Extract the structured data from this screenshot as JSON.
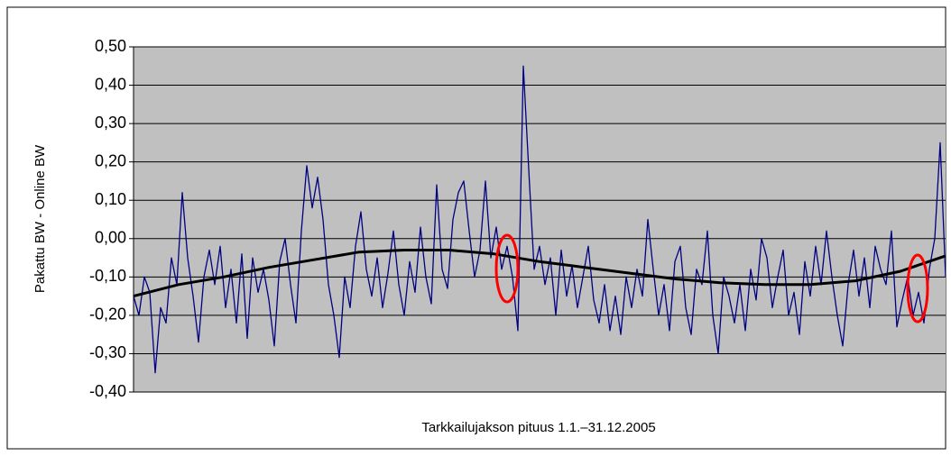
{
  "chart_data": {
    "type": "line",
    "y_label": "Pakattu BW - Online BW",
    "x_label": "Tarkkailujakson pituus 1.1.–31.12.2005",
    "ylim": [
      -0.4,
      0.5
    ],
    "yticks": [
      {
        "value": -0.4,
        "label": "-0,40"
      },
      {
        "value": -0.3,
        "label": "-0,30"
      },
      {
        "value": -0.2,
        "label": "-0,20"
      },
      {
        "value": -0.1,
        "label": "-0,10"
      },
      {
        "value": 0,
        "label": "0,00"
      },
      {
        "value": 0.1,
        "label": "0,10"
      },
      {
        "value": 0.2,
        "label": "0,20"
      },
      {
        "value": 0.3,
        "label": "0,30"
      },
      {
        "value": 0.4,
        "label": "0,40"
      },
      {
        "value": 0.5,
        "label": "0,50"
      }
    ],
    "grid": true,
    "series": [
      {
        "color": "#000080",
        "width": 1.3,
        "values": [
          -0.15,
          -0.2,
          -0.1,
          -0.14,
          -0.35,
          -0.18,
          -0.22,
          -0.05,
          -0.12,
          0.12,
          -0.05,
          -0.15,
          -0.27,
          -0.1,
          -0.03,
          -0.12,
          -0.02,
          -0.18,
          -0.08,
          -0.22,
          -0.04,
          -0.26,
          -0.05,
          -0.14,
          -0.08,
          -0.16,
          -0.28,
          -0.06,
          0.0,
          -0.12,
          -0.22,
          0.02,
          0.19,
          0.08,
          0.16,
          0.05,
          -0.12,
          -0.2,
          -0.31,
          -0.1,
          -0.18,
          -0.02,
          0.07,
          -0.08,
          -0.15,
          -0.05,
          -0.18,
          -0.09,
          0.02,
          -0.12,
          -0.2,
          -0.06,
          -0.14,
          0.03,
          -0.1,
          -0.17,
          0.14,
          -0.08,
          -0.13,
          0.05,
          0.12,
          0.15,
          0.02,
          -0.1,
          -0.03,
          0.15,
          -0.05,
          0.03,
          -0.08,
          -0.02,
          -0.1,
          -0.24,
          0.45,
          0.18,
          -0.08,
          -0.02,
          -0.12,
          -0.05,
          -0.2,
          -0.03,
          -0.15,
          -0.07,
          -0.18,
          -0.1,
          -0.02,
          -0.16,
          -0.22,
          -0.12,
          -0.24,
          -0.15,
          -0.25,
          -0.1,
          -0.18,
          -0.08,
          -0.15,
          0.05,
          -0.08,
          -0.2,
          -0.12,
          -0.24,
          -0.06,
          -0.02,
          -0.18,
          -0.25,
          -0.08,
          -0.12,
          0.02,
          -0.2,
          -0.3,
          -0.1,
          -0.15,
          -0.22,
          -0.12,
          -0.24,
          -0.08,
          -0.16,
          0.0,
          -0.05,
          -0.18,
          -0.1,
          -0.03,
          -0.2,
          -0.14,
          -0.25,
          -0.06,
          -0.15,
          -0.02,
          -0.12,
          0.02,
          -0.1,
          -0.2,
          -0.28,
          -0.12,
          -0.03,
          -0.15,
          -0.05,
          -0.18,
          -0.02,
          -0.08,
          -0.12,
          0.02,
          -0.23,
          -0.16,
          -0.1,
          -0.2,
          -0.14,
          -0.22,
          -0.08,
          0.0,
          0.25,
          -0.1
        ]
      },
      {
        "color": "#000000",
        "width": 3,
        "values": [
          -0.15,
          -0.12,
          -0.1,
          -0.075,
          -0.055,
          -0.035,
          -0.03,
          -0.03,
          -0.04,
          -0.06,
          -0.075,
          -0.09,
          -0.105,
          -0.115,
          -0.12,
          -0.12,
          -0.11,
          -0.085,
          -0.045
        ]
      }
    ]
  }
}
